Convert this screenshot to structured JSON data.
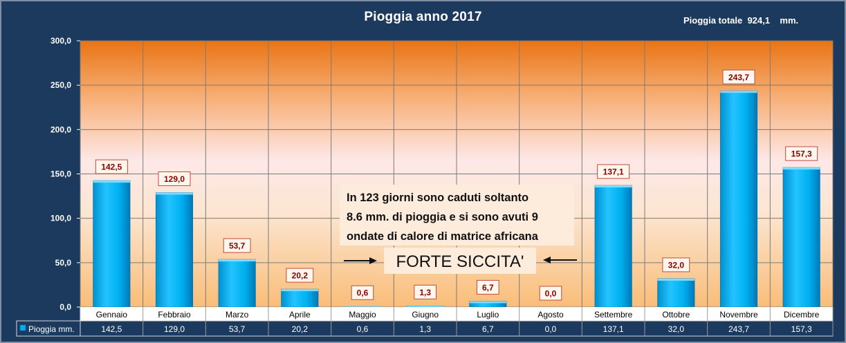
{
  "title": "Pioggia anno 2017",
  "total_label": "Pioggia totale  924,1    mm.",
  "annotation": {
    "lines": [
      "In 123 giorni sono caduti soltanto",
      "8.6 mm. di pioggia e si sono avuti 9",
      "ondate di calore di matrice africana"
    ],
    "highlight": "FORTE SICCITA'"
  },
  "colors": {
    "bar": "#00b0f0",
    "label_text": "#8a0000",
    "frame": "#1b3a5e"
  },
  "chart_data": {
    "type": "bar",
    "title": "Pioggia anno 2017",
    "categories": [
      "Gennaio",
      "Febbraio",
      "Marzo",
      "Aprile",
      "Maggio",
      "Giugno",
      "Luglio",
      "Agosto",
      "Settembre",
      "Ottobre",
      "Novembre",
      "Dicembre"
    ],
    "series": [
      {
        "name": "Pioggia mm.",
        "values": [
          142.5,
          129.0,
          53.7,
          20.2,
          0.6,
          1.3,
          6.7,
          0.0,
          137.1,
          32.0,
          243.7,
          157.3
        ],
        "labels": [
          "142,5",
          "129,0",
          "53,7",
          "20,2",
          "0,6",
          "1,3",
          "6,7",
          "0,0",
          "137,1",
          "32,0",
          "243,7",
          "157,3"
        ]
      }
    ],
    "ylim": [
      0,
      300
    ],
    "yticks": [
      0,
      50,
      100,
      150,
      200,
      250,
      300
    ],
    "ytick_labels": [
      "0,0",
      "50,0",
      "100,0",
      "150,0",
      "200,0",
      "250,0",
      "300,0"
    ],
    "grid": true,
    "data_table": true,
    "legend": "data-table-left"
  }
}
